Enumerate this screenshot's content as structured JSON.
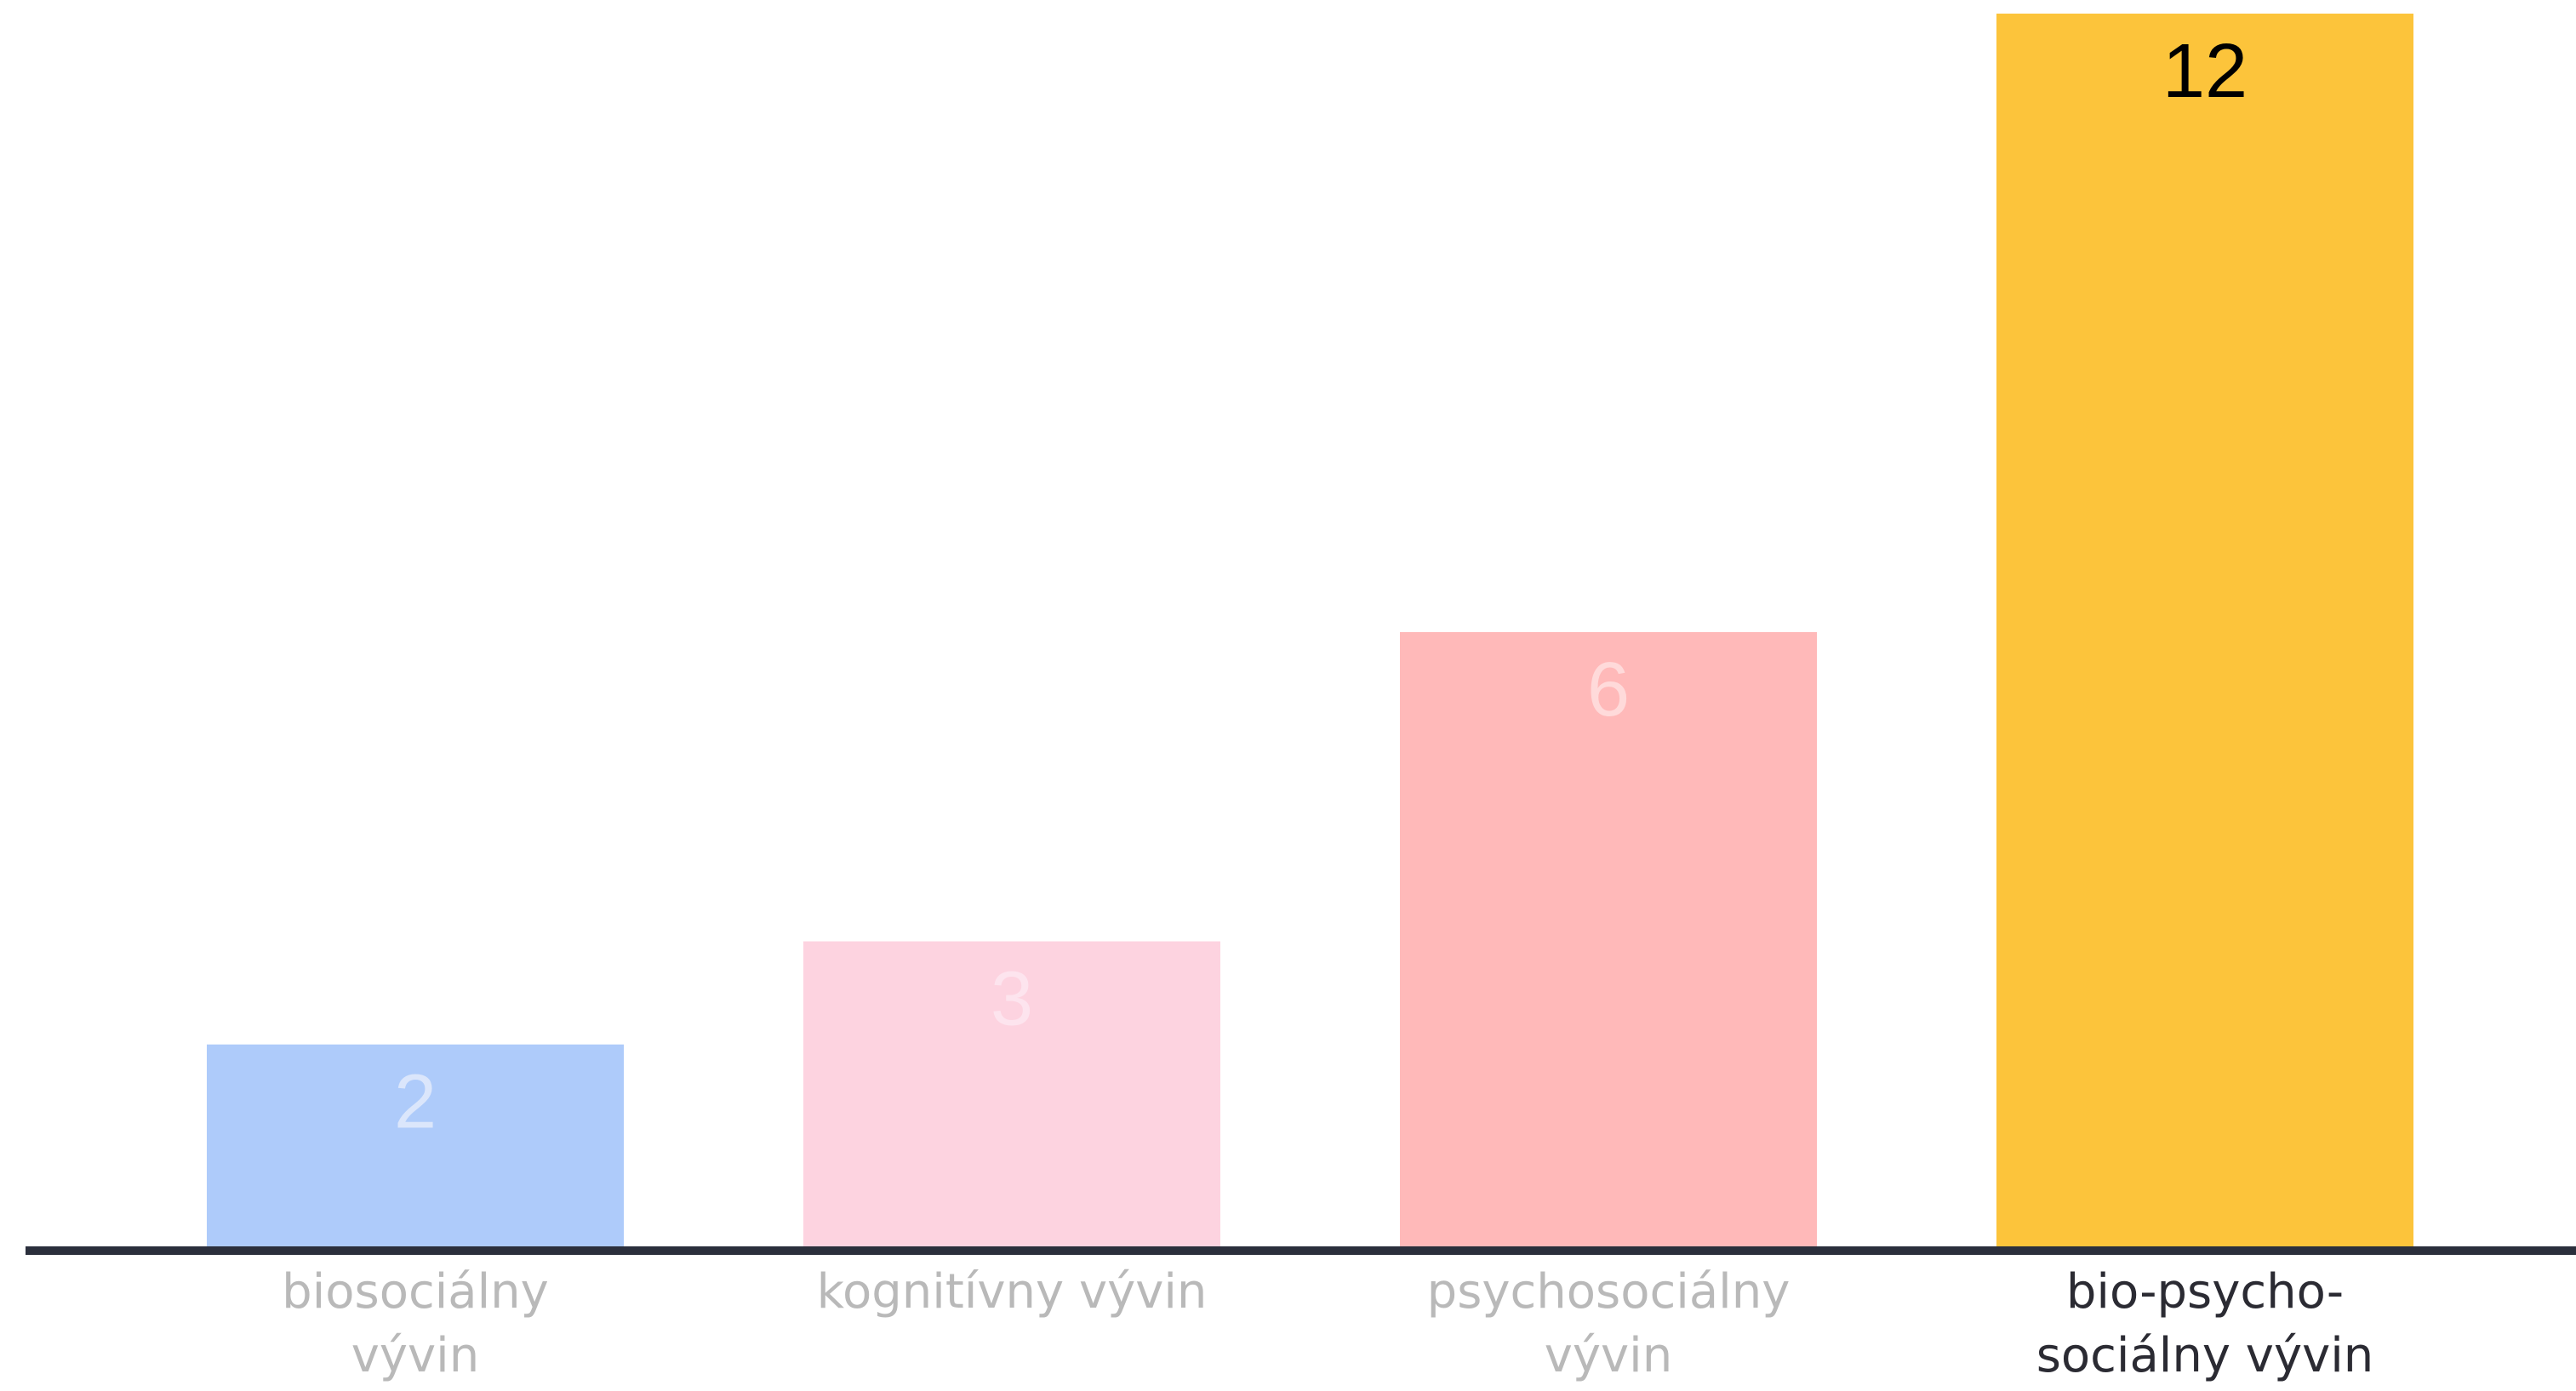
{
  "chart_data": {
    "type": "bar",
    "categories": [
      [
        "biosociálny",
        "vývin"
      ],
      [
        "kognitívny vývin"
      ],
      [
        "psychosociálny",
        "vývin"
      ],
      [
        "bio-psycho-",
        "sociálny vývin"
      ]
    ],
    "values": [
      2,
      3,
      6,
      12
    ],
    "data_labels": [
      "2",
      "3",
      "6",
      "12"
    ],
    "bar_colors": [
      "#aecbfa",
      "#fdd3e0",
      "#ffb9b9",
      "#fcc43b"
    ],
    "value_label_colors": [
      "#dbe6fb",
      "#fde4ee",
      "#ffdada",
      "#000000"
    ],
    "category_label_colors": [
      "#b9b9b9",
      "#b9b9b9",
      "#b9b9b9",
      "#2b2b33"
    ],
    "axis_color": "#2b2f3c",
    "ylim": [
      0,
      12
    ],
    "grid": false,
    "legend": "none",
    "title": "",
    "xlabel": "",
    "ylabel": ""
  }
}
